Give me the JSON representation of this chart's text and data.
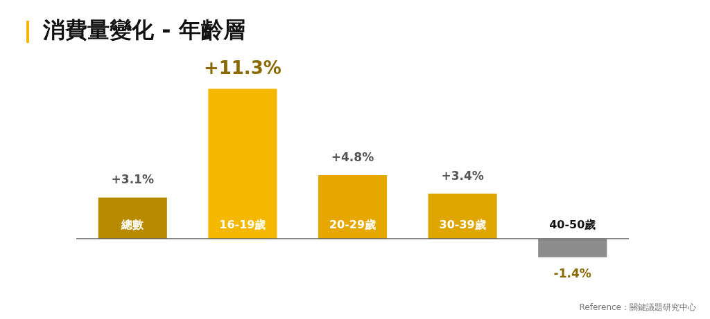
{
  "chart_data": {
    "type": "bar",
    "title": "消費量變化 - 年齡層",
    "categories": [
      "總數",
      "16-19歲",
      "20-29歲",
      "30-39歲",
      "40-50歲"
    ],
    "values": [
      3.1,
      11.3,
      4.8,
      3.4,
      -1.4
    ],
    "colors": [
      "#b88a00",
      "#f5b800",
      "#e6a800",
      "#dfa600",
      "#8c8c8c"
    ],
    "value_labels": [
      "+3.1%",
      "+11.3%",
      "+4.8%",
      "+3.4%",
      "-1.4%"
    ],
    "annotations": [
      "Reference：關鍵議題研究中心"
    ]
  }
}
